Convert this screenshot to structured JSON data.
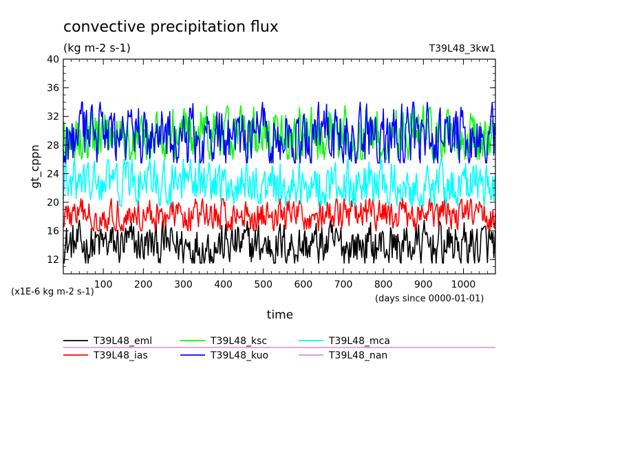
{
  "chart_data": {
    "type": "line",
    "title": "convective precipitation flux",
    "subtitle": "(kg m-2 s-1)",
    "run_label": "T39L48_3kw1",
    "xlabel": "time",
    "x_unit_note": "(days since 0000-01-01)",
    "ylabel": "gt_cppn",
    "y_unit_note": "(x1E-6 kg m-2 s-1)",
    "xlim": [
      0,
      1080
    ],
    "ylim": [
      10,
      40
    ],
    "x_ticks": [
      100,
      200,
      300,
      400,
      500,
      600,
      700,
      800,
      900,
      1000
    ],
    "y_ticks": [
      12,
      16,
      20,
      24,
      28,
      32,
      36,
      40
    ],
    "grid": false,
    "legend_position": "bottom",
    "series": [
      {
        "name": "T39L48_eml",
        "color": "#000000",
        "mean": 14.0,
        "range": [
          11.5,
          17.5
        ]
      },
      {
        "name": "T39L48_ias",
        "color": "#ff0000",
        "mean": 18.2,
        "range": [
          16.0,
          20.5
        ]
      },
      {
        "name": "T39L48_mca",
        "color": "#00ffff",
        "mean": 22.5,
        "range": [
          19.5,
          26.0
        ]
      },
      {
        "name": "T39L48_ksc",
        "color": "#00ff00",
        "mean": 29.5,
        "range": [
          26.0,
          33.5
        ]
      },
      {
        "name": "T39L48_kuo",
        "color": "#0000ff",
        "mean": 29.0,
        "range": [
          25.5,
          34.0
        ]
      },
      {
        "name": "T39L48_nan",
        "color": "#dd88cc",
        "mean": 0,
        "range": [
          0,
          0
        ]
      }
    ]
  }
}
